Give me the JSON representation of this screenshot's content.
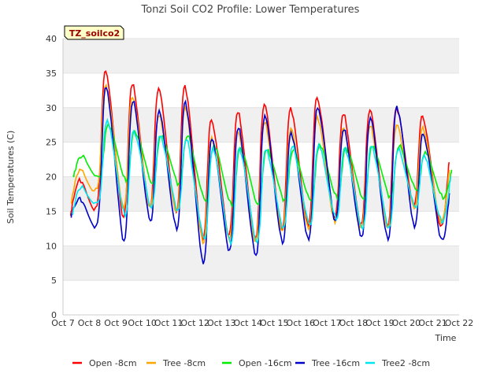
{
  "chart_data": {
    "type": "line",
    "title": "Tonzi Soil CO2 Profile: Lower Temperatures",
    "xlabel": "Time",
    "ylabel": "Soil Temperatures (C)",
    "ylim": [
      0,
      40
    ],
    "yticks": [
      "0",
      "5",
      "10",
      "15",
      "20",
      "25",
      "30",
      "35",
      "40"
    ],
    "xlim": [
      "2013-10-07",
      "2013-10-22"
    ],
    "xticks": [
      "Oct 7",
      "Oct 8",
      "Oct 9",
      "Oct 10",
      "Oct 11",
      "Oct 12",
      "Oct 13",
      "Oct 14",
      "Oct 15",
      "Oct 16",
      "Oct 17",
      "Oct 18",
      "Oct 19",
      "Oct 20",
      "Oct 21",
      "Oct 22"
    ],
    "grid": "horizontal bands",
    "legend_placement": "bottom",
    "annotation": "TZ_soilco2",
    "series": [
      {
        "name": "Open -8cm",
        "color": "#ff0000",
        "days": [
          "Oct 7",
          "Oct 8",
          "Oct 9",
          "Oct 10",
          "Oct 11",
          "Oct 12",
          "Oct 13",
          "Oct 14",
          "Oct 15",
          "Oct 16",
          "Oct 17",
          "Oct 18",
          "Oct 19",
          "Oct 20",
          "Oct 21"
        ],
        "daily_min": [
          14.5,
          16.0,
          14.0,
          15.5,
          15.0,
          11.0,
          11.5,
          11.0,
          12.5,
          13.0,
          14.0,
          13.0,
          13.0,
          16.0,
          12.8
        ],
        "daily_max": [
          19.5,
          35.3,
          33.5,
          32.8,
          33.0,
          28.2,
          29.5,
          30.5,
          29.8,
          31.4,
          29.2,
          29.7,
          29.8,
          28.7,
          22.1
        ]
      },
      {
        "name": "Tree -8cm",
        "color": "#ffa500",
        "days": [
          "Oct 7",
          "Oct 8",
          "Oct 9",
          "Oct 10",
          "Oct 11",
          "Oct 12",
          "Oct 13",
          "Oct 14",
          "Oct 15",
          "Oct 16",
          "Oct 17",
          "Oct 18",
          "Oct 19",
          "Oct 20",
          "Oct 21"
        ],
        "daily_min": [
          16.0,
          18.5,
          15.5,
          15.5,
          14.8,
          10.5,
          11.0,
          10.5,
          12.0,
          12.5,
          13.5,
          12.5,
          12.5,
          15.5,
          13.5
        ],
        "daily_max": [
          21.0,
          33.0,
          31.5,
          29.0,
          30.0,
          25.5,
          26.5,
          28.0,
          27.0,
          28.5,
          27.0,
          27.5,
          27.5,
          27.0,
          21.0
        ]
      },
      {
        "name": "Open -16cm",
        "color": "#00ee00",
        "days": [
          "Oct 7",
          "Oct 8",
          "Oct 9",
          "Oct 10",
          "Oct 11",
          "Oct 12",
          "Oct 13",
          "Oct 14",
          "Oct 15",
          "Oct 16",
          "Oct 17",
          "Oct 18",
          "Oct 19",
          "Oct 20",
          "Oct 21"
        ],
        "daily_min": [
          20.0,
          20.0,
          19.5,
          19.0,
          18.8,
          16.5,
          16.0,
          16.0,
          16.5,
          16.5,
          17.0,
          16.8,
          17.0,
          18.0,
          17.0
        ],
        "daily_max": [
          23.0,
          27.5,
          26.5,
          26.0,
          26.0,
          24.5,
          24.0,
          24.0,
          24.0,
          24.5,
          24.0,
          24.5,
          24.5,
          23.5,
          21.0
        ]
      },
      {
        "name": "Tree -16cm",
        "color": "#0000cc",
        "days": [
          "Oct 7",
          "Oct 8",
          "Oct 9",
          "Oct 10",
          "Oct 11",
          "Oct 12",
          "Oct 13",
          "Oct 14",
          "Oct 15",
          "Oct 16",
          "Oct 17",
          "Oct 18",
          "Oct 19",
          "Oct 20",
          "Oct 21"
        ],
        "daily_min": [
          14.3,
          13.5,
          10.5,
          13.5,
          12.5,
          7.5,
          9.2,
          8.5,
          10.5,
          11.0,
          13.5,
          11.2,
          11.0,
          12.8,
          11.0
        ],
        "daily_max": [
          16.8,
          33.0,
          31.0,
          29.5,
          30.7,
          25.5,
          27.2,
          28.8,
          26.2,
          30.0,
          27.0,
          28.5,
          30.0,
          26.2,
          17.6
        ]
      },
      {
        "name": "Tree2 -8cm",
        "color": "#00e5ee",
        "days": [
          "Oct 7",
          "Oct 8",
          "Oct 9",
          "Oct 10",
          "Oct 11",
          "Oct 12",
          "Oct 13",
          "Oct 14",
          "Oct 15",
          "Oct 16",
          "Oct 17",
          "Oct 18",
          "Oct 19",
          "Oct 20",
          "Oct 21"
        ],
        "daily_min": [
          14.5,
          16.5,
          14.5,
          15.5,
          15.0,
          11.0,
          10.5,
          10.5,
          12.5,
          13.0,
          14.0,
          12.5,
          12.5,
          15.5,
          13.5
        ],
        "daily_max": [
          18.5,
          28.0,
          26.5,
          26.0,
          25.5,
          24.0,
          24.0,
          24.0,
          24.5,
          24.5,
          24.0,
          24.5,
          24.0,
          23.0,
          20.0
        ]
      }
    ]
  }
}
